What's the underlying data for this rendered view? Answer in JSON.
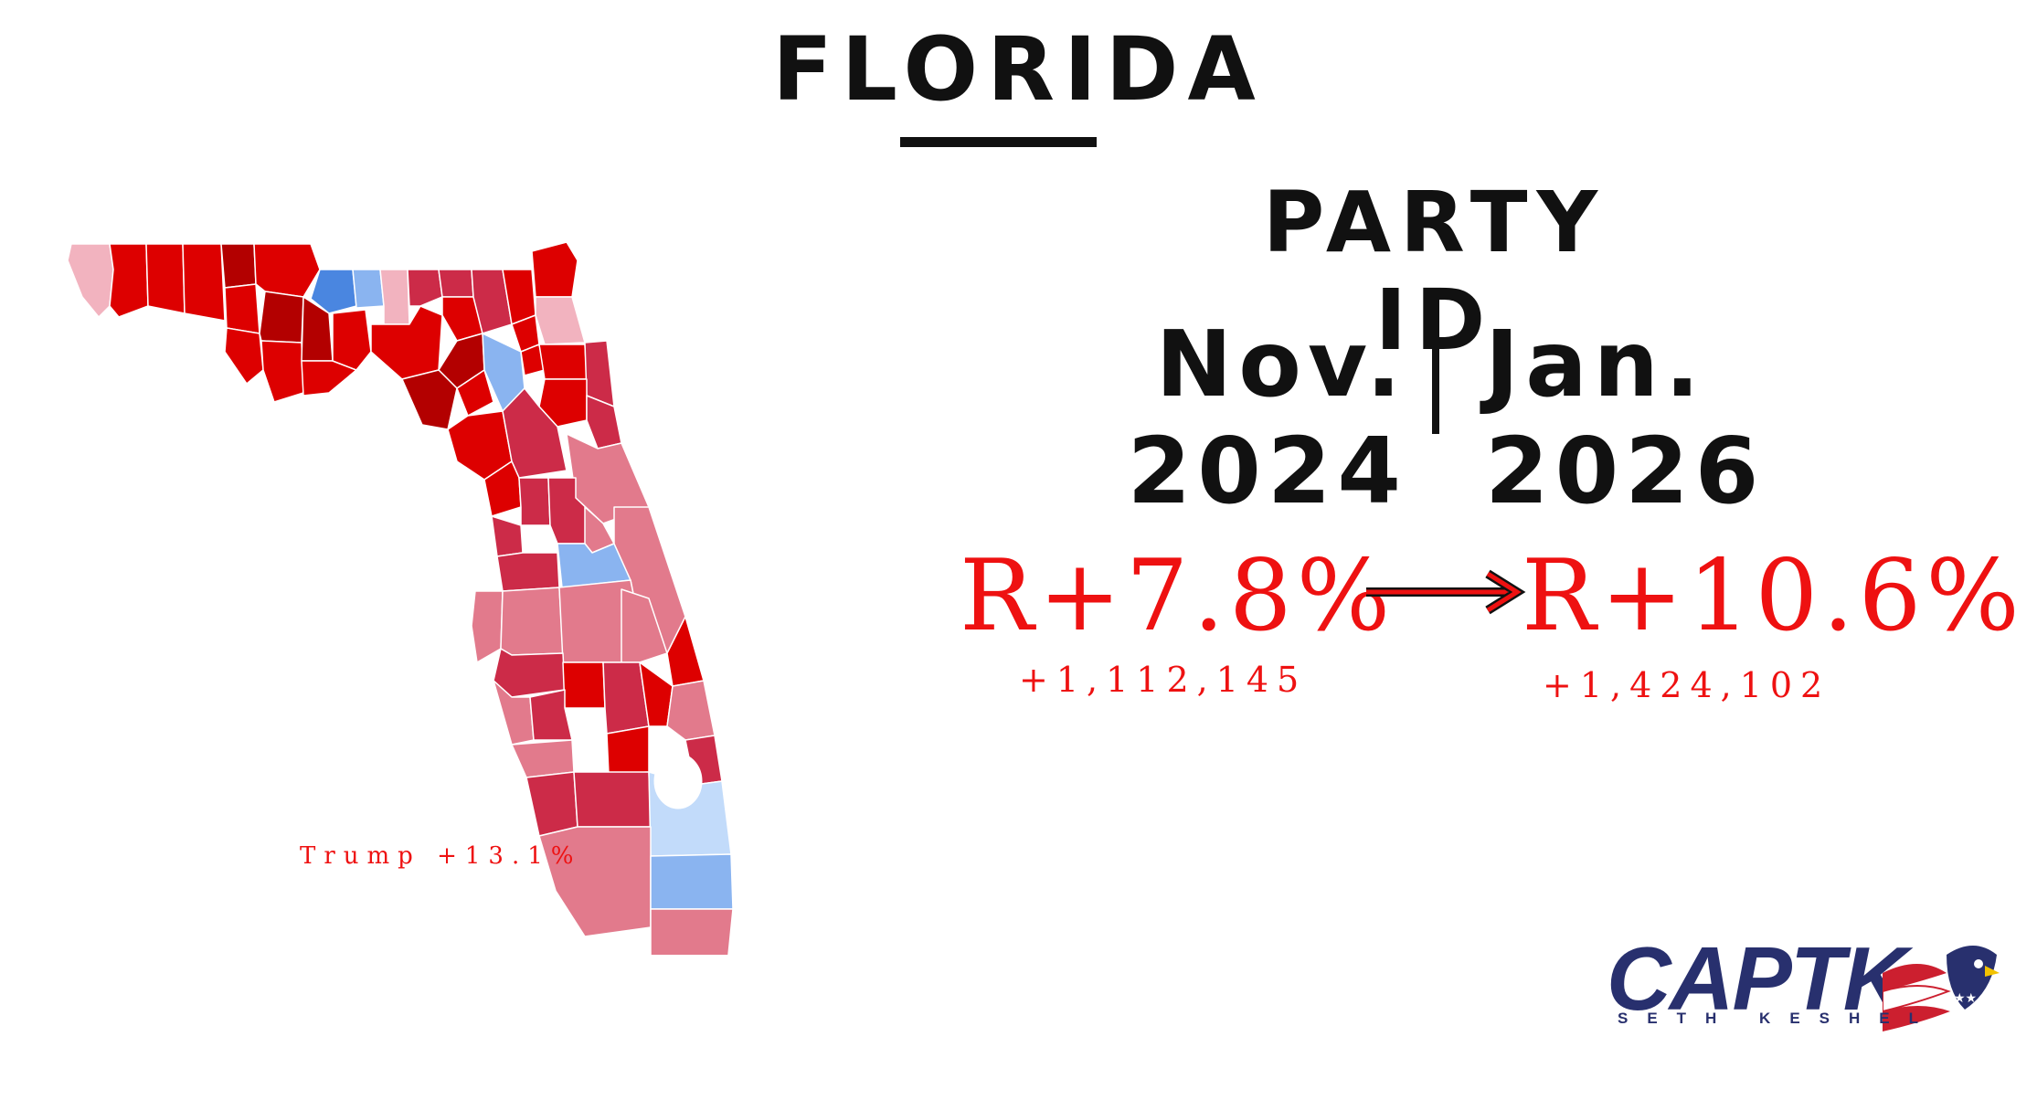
{
  "title": "FLORIDA",
  "subtitle": "PARTY ID",
  "dates": {
    "start": "Nov. 2024",
    "end": "Jan. 2026"
  },
  "margins": {
    "start": {
      "label": "R+7.8%",
      "votes": "+1,112,145"
    },
    "end": {
      "label": "R+10.6%",
      "votes": "+1,424,102"
    }
  },
  "map": {
    "annotation": "Trump +13.1%",
    "colors": {
      "safe_r": "#dd0000",
      "strong_r": "#b30000",
      "likely_r": "#cc2b48",
      "lean_r": "#e27a8c",
      "tilt_r": "#f2b3bf",
      "strong_d": "#4a86e0",
      "likely_d": "#8ab4f0",
      "lean_d": "#c2dbfa"
    }
  },
  "logo": {
    "name": "CAPTK",
    "tagline": "SETH KESHEL",
    "icon": "eagle-flag-icon"
  },
  "colors": {
    "accent_red": "#ee1111",
    "text": "#111111",
    "logo_navy": "#28306e"
  }
}
